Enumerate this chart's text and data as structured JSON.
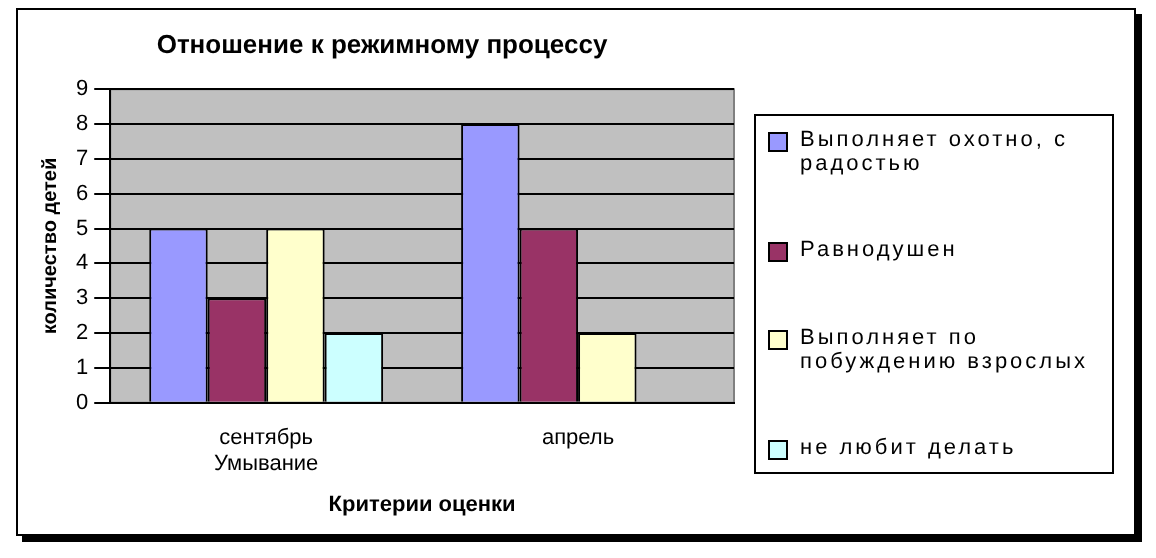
{
  "chart_data": {
    "type": "bar",
    "title": "Отношение к режимному процессу",
    "xlabel": "Критерии оценки",
    "ylabel": "количество детей",
    "categories": [
      "сентябрь\nУмывание",
      "апрель"
    ],
    "series": [
      {
        "name": "Выполняет охотно, с радостью",
        "color": "#9999ff",
        "values": [
          5,
          8
        ]
      },
      {
        "name": "Равнодушен",
        "color": "#993366",
        "values": [
          3,
          5
        ]
      },
      {
        "name": "Выполняет по побуждению взрослых",
        "color": "#ffffcc",
        "values": [
          5,
          2
        ]
      },
      {
        "name": "не любит делать",
        "color": "#ccffff",
        "values": [
          2,
          0
        ]
      }
    ],
    "ylim": [
      0,
      9
    ],
    "yticks": [
      0,
      1,
      2,
      3,
      4,
      5,
      6,
      7,
      8,
      9
    ],
    "grid": "y",
    "legend": "right"
  }
}
